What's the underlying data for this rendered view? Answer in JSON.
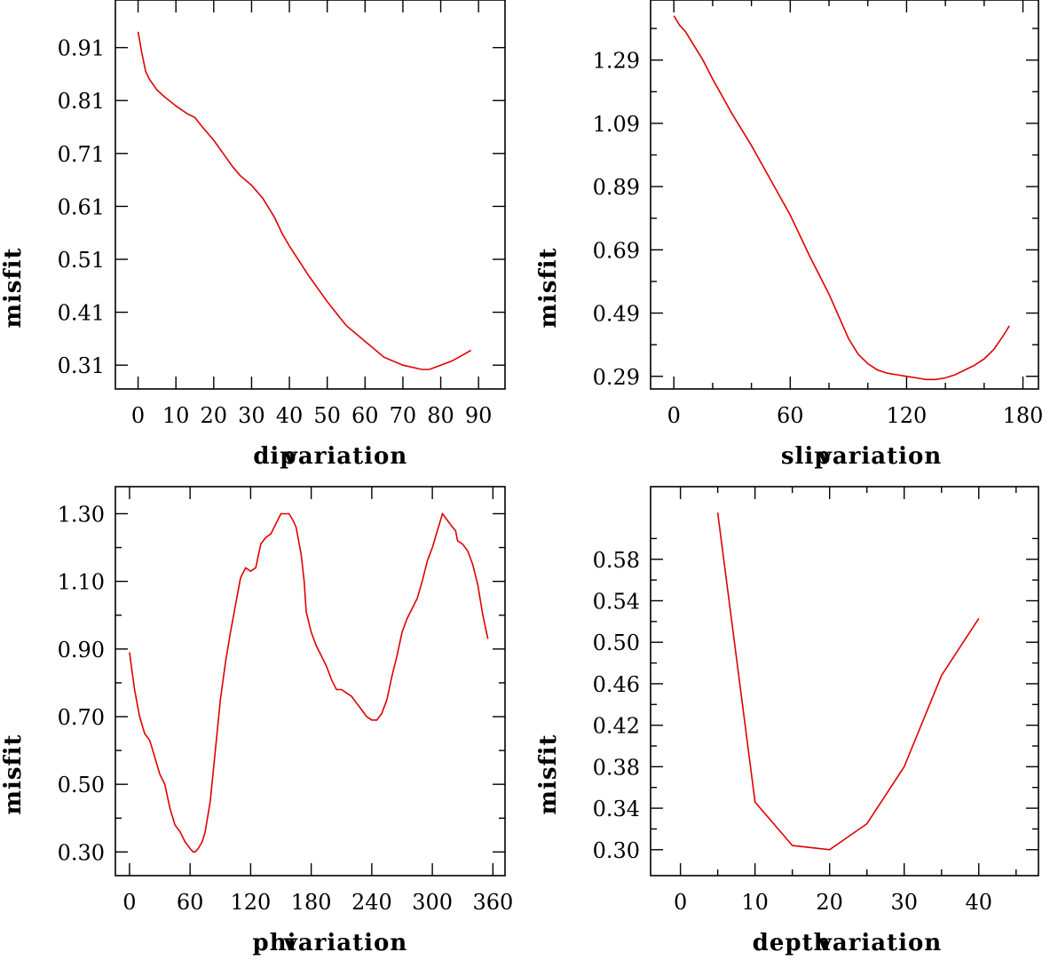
{
  "chart_data": [
    {
      "type": "line",
      "xlabel_left": "dip",
      "xlabel_right": "variation",
      "ylabel": "misfit",
      "xlim": [
        -6,
        97
      ],
      "ylim": [
        0.265,
        1.0
      ],
      "xticks": [
        0,
        10,
        20,
        30,
        40,
        50,
        60,
        70,
        80,
        90
      ],
      "xtick_labels": [
        "0",
        "10",
        "20",
        "30",
        "40",
        "50",
        "60",
        "70",
        "80",
        "90"
      ],
      "yticks": [
        0.31,
        0.41,
        0.51,
        0.61,
        0.71,
        0.81,
        0.91
      ],
      "ytick_labels": [
        "0.31",
        "0.41",
        "0.51",
        "0.61",
        "0.71",
        "0.81",
        "0.91"
      ],
      "color": "#e00000",
      "series": [
        {
          "name": "misfit",
          "x": [
            0,
            1,
            2,
            3,
            5,
            7,
            10,
            13,
            15,
            17,
            20,
            23,
            25,
            27,
            30,
            33,
            36,
            38,
            40,
            45,
            50,
            55,
            60,
            65,
            70,
            75,
            77,
            80,
            83,
            86,
            88
          ],
          "y": [
            0.94,
            0.9,
            0.865,
            0.85,
            0.83,
            0.817,
            0.8,
            0.785,
            0.778,
            0.76,
            0.735,
            0.705,
            0.685,
            0.668,
            0.65,
            0.625,
            0.59,
            0.56,
            0.535,
            0.48,
            0.43,
            0.385,
            0.355,
            0.325,
            0.31,
            0.302,
            0.302,
            0.31,
            0.318,
            0.33,
            0.338
          ]
        }
      ]
    },
    {
      "type": "line",
      "xlabel_left": "slip",
      "xlabel_right": "variation",
      "ylabel": "misfit",
      "xlim": [
        -12,
        188
      ],
      "ylim": [
        0.25,
        1.48
      ],
      "xticks": [
        0,
        60,
        120,
        180
      ],
      "xtick_labels": [
        "0",
        "60",
        "120",
        "180"
      ],
      "minor_xticks": [
        20,
        40,
        80,
        100,
        140,
        160
      ],
      "yticks": [
        0.29,
        0.49,
        0.69,
        0.89,
        1.09,
        1.29
      ],
      "ytick_labels": [
        "0.29",
        "0.49",
        "0.69",
        "0.89",
        "1.09",
        "1.29"
      ],
      "minor_yticks": [
        0.39,
        0.59,
        0.79,
        0.99,
        1.19,
        1.39
      ],
      "color": "#e00000",
      "series": [
        {
          "name": "misfit",
          "x": [
            0,
            3,
            6,
            10,
            15,
            20,
            30,
            40,
            50,
            60,
            70,
            80,
            90,
            95,
            100,
            105,
            110,
            115,
            120,
            125,
            130,
            135,
            140,
            145,
            150,
            155,
            160,
            165,
            170,
            173
          ],
          "y": [
            1.43,
            1.4,
            1.38,
            1.34,
            1.29,
            1.23,
            1.12,
            1.02,
            0.91,
            0.8,
            0.67,
            0.55,
            0.41,
            0.36,
            0.33,
            0.31,
            0.3,
            0.295,
            0.29,
            0.285,
            0.28,
            0.28,
            0.285,
            0.295,
            0.31,
            0.325,
            0.345,
            0.375,
            0.42,
            0.45
          ]
        }
      ]
    },
    {
      "type": "line",
      "xlabel_left": "phi",
      "xlabel_right": "variation",
      "ylabel": "misfit",
      "xlim": [
        -14,
        372
      ],
      "ylim": [
        0.23,
        1.38
      ],
      "xticks": [
        0,
        60,
        120,
        180,
        240,
        300,
        360
      ],
      "xtick_labels": [
        "0",
        "60",
        "120",
        "180",
        "240",
        "300",
        "360"
      ],
      "yticks": [
        0.3,
        0.5,
        0.7,
        0.9,
        1.1,
        1.3
      ],
      "ytick_labels": [
        "0.30",
        "0.50",
        "0.70",
        "0.90",
        "1.10",
        "1.30"
      ],
      "minor_yticks": [
        0.4,
        0.6,
        0.8,
        1.0,
        1.2
      ],
      "color": "#e00000",
      "series": [
        {
          "name": "misfit",
          "x": [
            0,
            5,
            10,
            15,
            20,
            25,
            30,
            35,
            40,
            45,
            50,
            55,
            60,
            63,
            65,
            68,
            72,
            75,
            80,
            85,
            90,
            95,
            100,
            105,
            110,
            115,
            120,
            125,
            130,
            135,
            140,
            145,
            150,
            155,
            158,
            162,
            165,
            170,
            173,
            175,
            180,
            185,
            190,
            195,
            200,
            205,
            210,
            215,
            220,
            225,
            230,
            235,
            240,
            245,
            250,
            255,
            260,
            265,
            270,
            275,
            280,
            285,
            290,
            295,
            300,
            305,
            310,
            315,
            320,
            323,
            325,
            330,
            335,
            340,
            345,
            350,
            355
          ],
          "y": [
            0.89,
            0.78,
            0.7,
            0.65,
            0.63,
            0.58,
            0.53,
            0.5,
            0.43,
            0.38,
            0.36,
            0.33,
            0.31,
            0.3,
            0.3,
            0.31,
            0.33,
            0.36,
            0.45,
            0.6,
            0.75,
            0.86,
            0.95,
            1.03,
            1.11,
            1.14,
            1.13,
            1.14,
            1.21,
            1.23,
            1.24,
            1.27,
            1.3,
            1.3,
            1.3,
            1.28,
            1.26,
            1.18,
            1.1,
            1.01,
            0.95,
            0.91,
            0.88,
            0.85,
            0.81,
            0.78,
            0.78,
            0.77,
            0.76,
            0.74,
            0.72,
            0.7,
            0.69,
            0.69,
            0.71,
            0.75,
            0.82,
            0.88,
            0.95,
            0.99,
            1.02,
            1.05,
            1.1,
            1.16,
            1.2,
            1.25,
            1.3,
            1.28,
            1.26,
            1.25,
            1.22,
            1.21,
            1.19,
            1.15,
            1.09,
            1.0,
            0.93
          ]
        }
      ]
    },
    {
      "type": "line",
      "xlabel_left": "depth",
      "xlabel_right": "variation",
      "ylabel": "misfit",
      "xlim": [
        -4,
        48
      ],
      "ylim": [
        0.275,
        0.65
      ],
      "xticks": [
        0,
        10,
        20,
        30,
        40
      ],
      "xtick_labels": [
        "0",
        "10",
        "20",
        "30",
        "40"
      ],
      "minor_xticks": [
        5,
        15,
        25,
        35,
        45
      ],
      "yticks": [
        0.3,
        0.34,
        0.38,
        0.42,
        0.46,
        0.5,
        0.54,
        0.58
      ],
      "ytick_labels": [
        "0.30",
        "0.34",
        "0.38",
        "0.42",
        "0.46",
        "0.50",
        "0.54",
        "0.58"
      ],
      "minor_yticks": [
        0.32,
        0.36,
        0.4,
        0.44,
        0.48,
        0.52,
        0.56,
        0.6
      ],
      "color": "#e00000",
      "series": [
        {
          "name": "misfit",
          "x": [
            5,
            10,
            15,
            20,
            25,
            30,
            35,
            40
          ],
          "y": [
            0.625,
            0.346,
            0.304,
            0.3,
            0.325,
            0.38,
            0.468,
            0.523
          ]
        }
      ]
    }
  ]
}
